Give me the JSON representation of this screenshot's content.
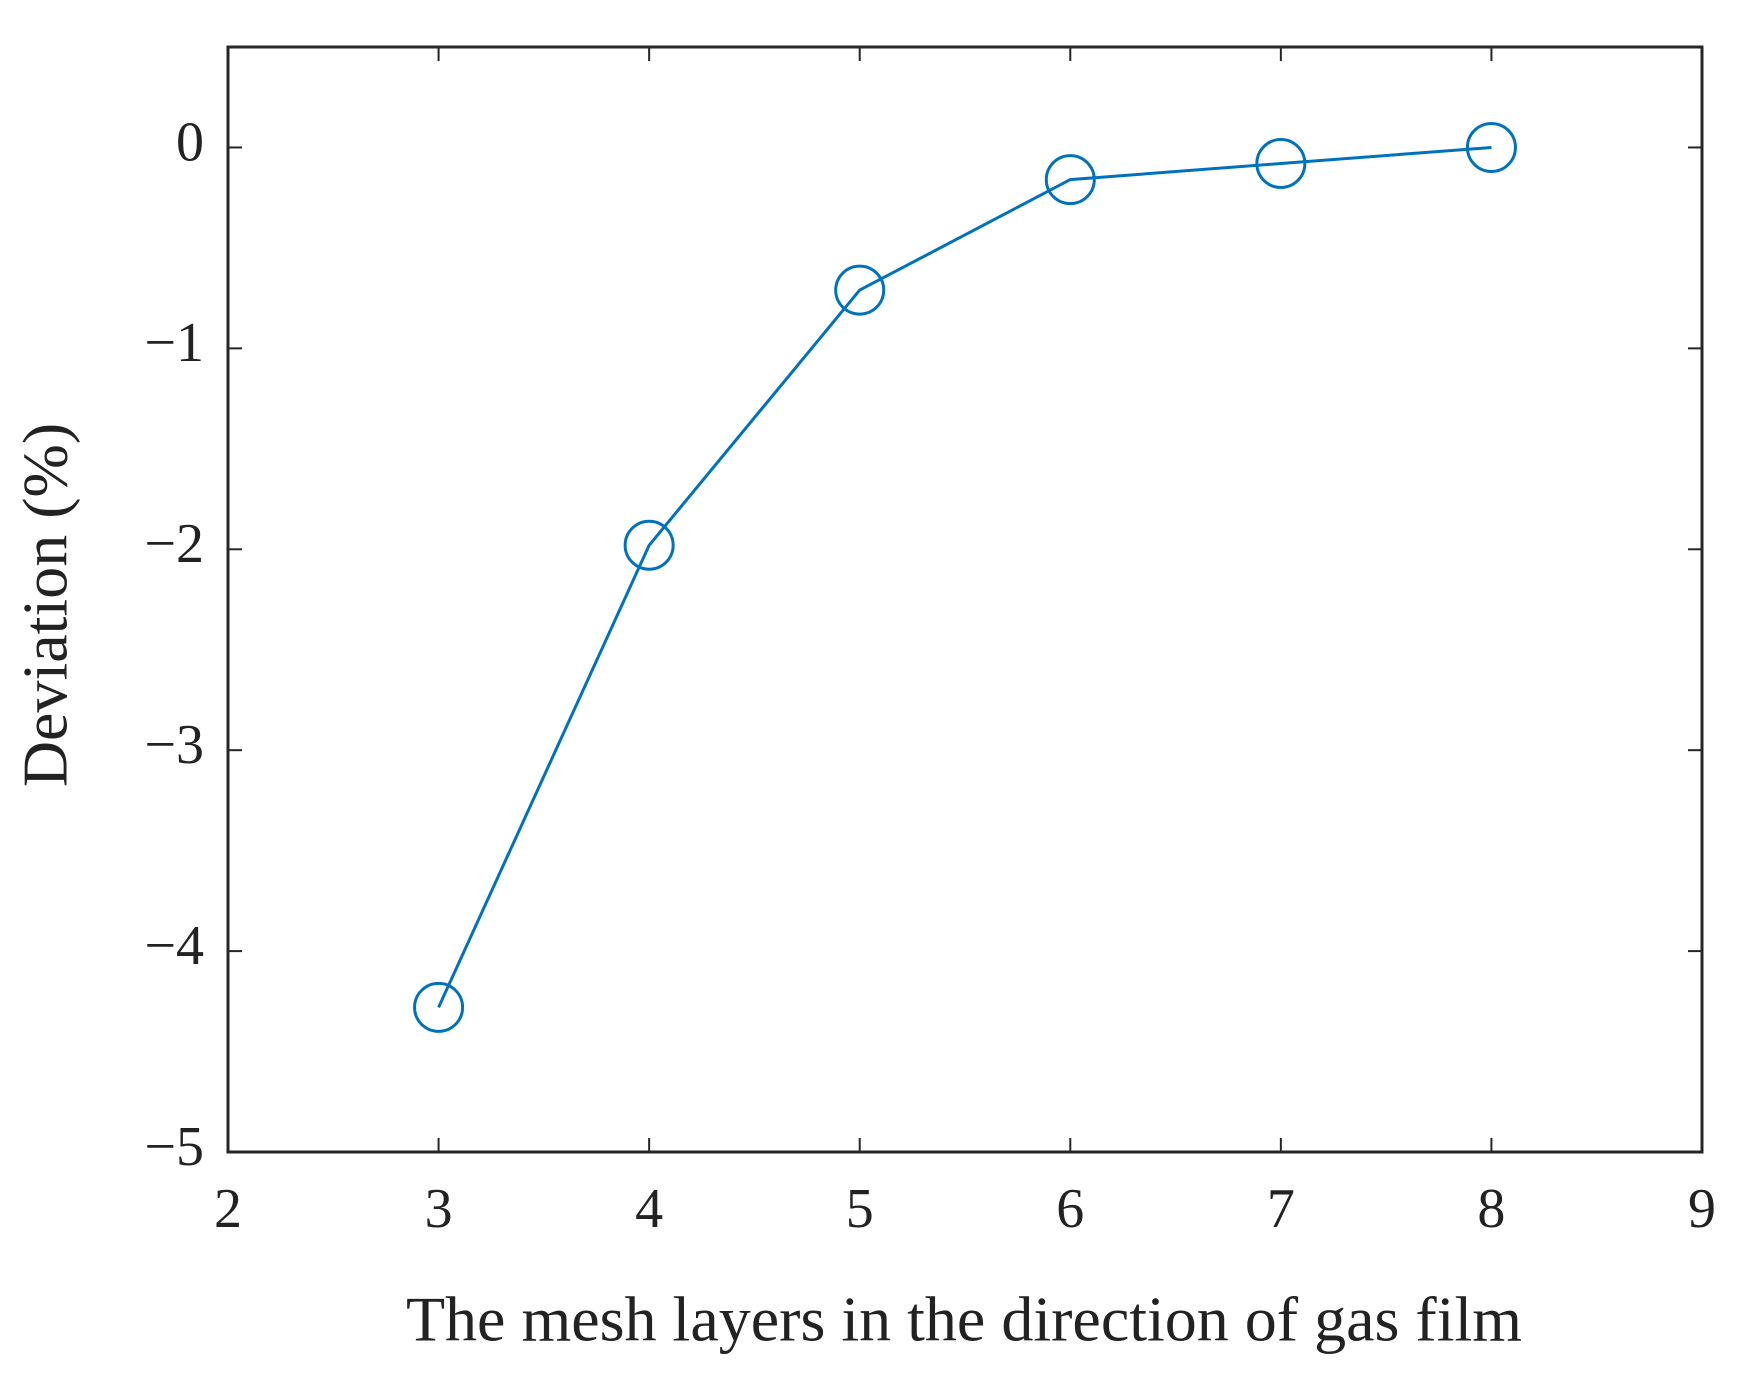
{
  "chart_data": {
    "type": "line",
    "x_label": "The mesh layers in the direction of gas film",
    "y_label": "Deviation (%)",
    "x": [
      3,
      4,
      5,
      6,
      7,
      8
    ],
    "series": [
      {
        "color": "#0072bd",
        "values": [
          -4.28,
          -1.98,
          -0.71,
          -0.16,
          -0.08,
          0
        ]
      }
    ],
    "xlim": [
      2,
      9
    ],
    "xticks": [
      2,
      3,
      4,
      5,
      6,
      7,
      8,
      9
    ],
    "ylim": [
      -5,
      0.5
    ],
    "yticks": [
      {
        "value": -5,
        "label": "−5"
      },
      {
        "value": -4,
        "label": "−4"
      },
      {
        "value": -3,
        "label": "−3"
      },
      {
        "value": -2,
        "label": "−2"
      },
      {
        "value": -1,
        "label": "−1"
      },
      0
    ],
    "grid": false,
    "marker": "circle"
  }
}
